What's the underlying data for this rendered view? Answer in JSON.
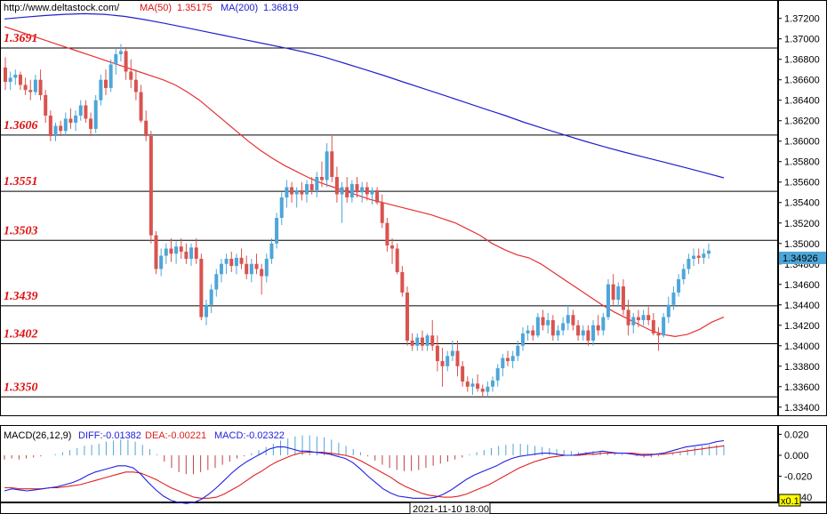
{
  "colors": {
    "up": "#4da6d8",
    "down": "#d9534f",
    "ma50": "#e83030",
    "ma200": "#2020d0",
    "level_text": "#e01010",
    "diff": "#2020e0",
    "dea": "#e02020",
    "macd_pos": "#4da6d8",
    "macd_neg": "#c04040"
  },
  "header": {
    "url": "http://www.deltastock.com/",
    "ma50_label": "MA(50)",
    "ma50_value": "1.35175",
    "ma200_label": "MA(200)",
    "ma200_value": "1.36819"
  },
  "macd_header": {
    "title": "MACD(26,12,9)",
    "diff": "DIFF:-0.01382",
    "dea": "DEA:-0.00221",
    "macd": "MACD:-0.02322"
  },
  "footer": {
    "timestamp": "2021-11-10 18:00",
    "zoom": "x0.1"
  },
  "chart_data": {
    "type": "candlestick",
    "ylim": [
      1.3332,
      1.3738
    ],
    "y_ticks": [
      "1.37200",
      "1.37000",
      "1.36800",
      "1.36600",
      "1.36400",
      "1.36200",
      "1.36000",
      "1.35800",
      "1.35600",
      "1.35400",
      "1.35200",
      "1.35000",
      "1.34800",
      "1.34600",
      "1.34400",
      "1.34200",
      "1.34000",
      "1.33800",
      "1.33600",
      "1.33400"
    ],
    "last_price": "1.34926",
    "levels": [
      "1.3691",
      "1.3606",
      "1.3551",
      "1.3503",
      "1.3439",
      "1.3402",
      "1.3350"
    ],
    "ohlc": [
      [
        1.3672,
        1.3682,
        1.365,
        1.3658
      ],
      [
        1.3658,
        1.3668,
        1.365,
        1.3662
      ],
      [
        1.3662,
        1.367,
        1.3655,
        1.3665
      ],
      [
        1.3665,
        1.3668,
        1.365,
        1.3655
      ],
      [
        1.3655,
        1.3662,
        1.3645,
        1.365
      ],
      [
        1.365,
        1.366,
        1.364,
        1.3648
      ],
      [
        1.3648,
        1.3665,
        1.3645,
        1.366
      ],
      [
        1.366,
        1.367,
        1.364,
        1.3645
      ],
      [
        1.3645,
        1.365,
        1.3618,
        1.3625
      ],
      [
        1.3625,
        1.363,
        1.36,
        1.3605
      ],
      [
        1.3605,
        1.3618,
        1.36,
        1.3615
      ],
      [
        1.3615,
        1.362,
        1.3605,
        1.361
      ],
      [
        1.361,
        1.3628,
        1.3605,
        1.3622
      ],
      [
        1.3622,
        1.3632,
        1.3612,
        1.3618
      ],
      [
        1.3618,
        1.363,
        1.361,
        1.3625
      ],
      [
        1.3625,
        1.364,
        1.362,
        1.3635
      ],
      [
        1.3635,
        1.364,
        1.3618,
        1.3622
      ],
      [
        1.3622,
        1.3628,
        1.3605,
        1.3612
      ],
      [
        1.3612,
        1.3645,
        1.3608,
        1.364
      ],
      [
        1.364,
        1.3665,
        1.3635,
        1.366
      ],
      [
        1.366,
        1.367,
        1.3645,
        1.3652
      ],
      [
        1.3652,
        1.368,
        1.3648,
        1.3675
      ],
      [
        1.3675,
        1.369,
        1.3665,
        1.3685
      ],
      [
        1.3685,
        1.3695,
        1.3678,
        1.3688
      ],
      [
        1.3688,
        1.3692,
        1.366,
        1.3668
      ],
      [
        1.3668,
        1.368,
        1.3652,
        1.366
      ],
      [
        1.366,
        1.367,
        1.364,
        1.3648
      ],
      [
        1.3648,
        1.3655,
        1.3618,
        1.362
      ],
      [
        1.362,
        1.363,
        1.36,
        1.3605
      ],
      [
        1.3605,
        1.361,
        1.35,
        1.3508
      ],
      [
        1.3508,
        1.3512,
        1.347,
        1.3475
      ],
      [
        1.3475,
        1.3495,
        1.3468,
        1.3488
      ],
      [
        1.3488,
        1.35,
        1.348,
        1.3495
      ],
      [
        1.3495,
        1.3505,
        1.3482,
        1.349
      ],
      [
        1.349,
        1.3502,
        1.348,
        1.3497
      ],
      [
        1.3497,
        1.3505,
        1.3485,
        1.3492
      ],
      [
        1.3492,
        1.35,
        1.348,
        1.3485
      ],
      [
        1.3485,
        1.35,
        1.3478,
        1.3496
      ],
      [
        1.3496,
        1.3505,
        1.348,
        1.3485
      ],
      [
        1.3485,
        1.349,
        1.3425,
        1.3428
      ],
      [
        1.3428,
        1.3445,
        1.342,
        1.344
      ],
      [
        1.344,
        1.346,
        1.3432,
        1.3455
      ],
      [
        1.3455,
        1.3475,
        1.3448,
        1.347
      ],
      [
        1.347,
        1.3485,
        1.3462,
        1.348
      ],
      [
        1.348,
        1.349,
        1.347,
        1.3485
      ],
      [
        1.3485,
        1.3492,
        1.3472,
        1.3478
      ],
      [
        1.3478,
        1.349,
        1.347,
        1.3486
      ],
      [
        1.3486,
        1.3495,
        1.3475,
        1.348
      ],
      [
        1.348,
        1.3488,
        1.3465,
        1.347
      ],
      [
        1.347,
        1.3485,
        1.3462,
        1.348
      ],
      [
        1.348,
        1.349,
        1.347,
        1.3475
      ],
      [
        1.3475,
        1.348,
        1.345,
        1.3468
      ],
      [
        1.3468,
        1.349,
        1.3462,
        1.3485
      ],
      [
        1.3485,
        1.3505,
        1.348,
        1.35
      ],
      [
        1.35,
        1.353,
        1.3495,
        1.3525
      ],
      [
        1.3525,
        1.355,
        1.3518,
        1.3545
      ],
      [
        1.3545,
        1.3562,
        1.3535,
        1.3555
      ],
      [
        1.3555,
        1.356,
        1.354,
        1.3548
      ],
      [
        1.3548,
        1.3555,
        1.3535,
        1.3552
      ],
      [
        1.3552,
        1.356,
        1.3542,
        1.3548
      ],
      [
        1.3548,
        1.3562,
        1.354,
        1.3558
      ],
      [
        1.3558,
        1.3565,
        1.3548,
        1.3552
      ],
      [
        1.3552,
        1.357,
        1.3545,
        1.3565
      ],
      [
        1.3565,
        1.358,
        1.3555,
        1.3562
      ],
      [
        1.3562,
        1.3598,
        1.3555,
        1.359
      ],
      [
        1.359,
        1.3605,
        1.356,
        1.3565
      ],
      [
        1.3565,
        1.3575,
        1.354,
        1.3548
      ],
      [
        1.3548,
        1.356,
        1.352,
        1.3555
      ],
      [
        1.3555,
        1.3565,
        1.354,
        1.3545
      ],
      [
        1.3545,
        1.3562,
        1.354,
        1.3558
      ],
      [
        1.3558,
        1.3565,
        1.3545,
        1.355
      ],
      [
        1.355,
        1.356,
        1.354,
        1.3555
      ],
      [
        1.3555,
        1.356,
        1.3542,
        1.3548
      ],
      [
        1.3548,
        1.3555,
        1.3538,
        1.3552
      ],
      [
        1.3552,
        1.3555,
        1.3538,
        1.354
      ],
      [
        1.354,
        1.3548,
        1.3515,
        1.352
      ],
      [
        1.352,
        1.3525,
        1.3492,
        1.3498
      ],
      [
        1.3498,
        1.3505,
        1.348,
        1.3495
      ],
      [
        1.3495,
        1.35,
        1.347,
        1.3472
      ],
      [
        1.3472,
        1.3478,
        1.3448,
        1.3452
      ],
      [
        1.3452,
        1.3458,
        1.34,
        1.3405
      ],
      [
        1.3405,
        1.3412,
        1.3395,
        1.34
      ],
      [
        1.34,
        1.3412,
        1.3395,
        1.3408
      ],
      [
        1.3408,
        1.3415,
        1.3395,
        1.34
      ],
      [
        1.34,
        1.3412,
        1.3395,
        1.341
      ],
      [
        1.341,
        1.3425,
        1.3395,
        1.34
      ],
      [
        1.34,
        1.341,
        1.3375,
        1.3385
      ],
      [
        1.3385,
        1.3398,
        1.336,
        1.338
      ],
      [
        1.338,
        1.3395,
        1.3375,
        1.339
      ],
      [
        1.339,
        1.3405,
        1.3385,
        1.3395
      ],
      [
        1.3395,
        1.3405,
        1.337,
        1.338
      ],
      [
        1.338,
        1.3385,
        1.336,
        1.3365
      ],
      [
        1.3365,
        1.337,
        1.3355,
        1.336
      ],
      [
        1.336,
        1.3368,
        1.3352,
        1.3363
      ],
      [
        1.3363,
        1.3372,
        1.3355,
        1.3358
      ],
      [
        1.3358,
        1.3362,
        1.335,
        1.3355
      ],
      [
        1.3355,
        1.3365,
        1.335,
        1.336
      ],
      [
        1.336,
        1.337,
        1.3355,
        1.3366
      ],
      [
        1.3366,
        1.3382,
        1.336,
        1.3378
      ],
      [
        1.3378,
        1.3392,
        1.337,
        1.3388
      ],
      [
        1.3388,
        1.3395,
        1.338,
        1.3385
      ],
      [
        1.3385,
        1.3395,
        1.3378,
        1.339
      ],
      [
        1.339,
        1.3405,
        1.3385,
        1.34
      ],
      [
        1.34,
        1.3418,
        1.3395,
        1.3412
      ],
      [
        1.3412,
        1.342,
        1.3405,
        1.3415
      ],
      [
        1.3415,
        1.342,
        1.3405,
        1.341
      ],
      [
        1.341,
        1.3432,
        1.3408,
        1.3428
      ],
      [
        1.3428,
        1.3435,
        1.3415,
        1.342
      ],
      [
        1.342,
        1.3432,
        1.3412,
        1.3425
      ],
      [
        1.3425,
        1.343,
        1.3405,
        1.341
      ],
      [
        1.341,
        1.342,
        1.3405,
        1.3415
      ],
      [
        1.3415,
        1.3428,
        1.341,
        1.3422
      ],
      [
        1.3422,
        1.344,
        1.3415,
        1.343
      ],
      [
        1.343,
        1.3435,
        1.3415,
        1.342
      ],
      [
        1.342,
        1.3425,
        1.3405,
        1.341
      ],
      [
        1.341,
        1.342,
        1.3405,
        1.3415
      ],
      [
        1.3415,
        1.342,
        1.34,
        1.3405
      ],
      [
        1.3405,
        1.3425,
        1.34,
        1.342
      ],
      [
        1.342,
        1.343,
        1.341,
        1.3415
      ],
      [
        1.3415,
        1.3432,
        1.341,
        1.3428
      ],
      [
        1.3428,
        1.3465,
        1.3425,
        1.346
      ],
      [
        1.346,
        1.347,
        1.344,
        1.3445
      ],
      [
        1.3445,
        1.3462,
        1.3438,
        1.3458
      ],
      [
        1.3458,
        1.3465,
        1.343,
        1.3435
      ],
      [
        1.3435,
        1.3445,
        1.341,
        1.342
      ],
      [
        1.342,
        1.3432,
        1.3412,
        1.3428
      ],
      [
        1.3428,
        1.3435,
        1.3418,
        1.3425
      ],
      [
        1.3425,
        1.3435,
        1.342,
        1.343
      ],
      [
        1.343,
        1.3438,
        1.342,
        1.3425
      ],
      [
        1.3425,
        1.3432,
        1.341,
        1.3412
      ],
      [
        1.3412,
        1.3418,
        1.3395,
        1.341
      ],
      [
        1.341,
        1.3432,
        1.3408,
        1.3428
      ],
      [
        1.3428,
        1.3448,
        1.3422,
        1.344
      ],
      [
        1.344,
        1.3458,
        1.3435,
        1.3452
      ],
      [
        1.3452,
        1.347,
        1.3448,
        1.3465
      ],
      [
        1.3465,
        1.348,
        1.346,
        1.3475
      ],
      [
        1.3475,
        1.349,
        1.347,
        1.3485
      ],
      [
        1.3485,
        1.3495,
        1.3478,
        1.3488
      ],
      [
        1.3488,
        1.3495,
        1.348,
        1.3486
      ],
      [
        1.3486,
        1.3495,
        1.348,
        1.349
      ],
      [
        1.349,
        1.35,
        1.3485,
        1.3493
      ]
    ],
    "ma50": [
      1.3712,
      1.3708,
      1.3704,
      1.37,
      1.3696,
      1.3692,
      1.3688,
      1.3684,
      1.368,
      1.3676,
      1.3672,
      1.3668,
      1.3664,
      1.366,
      1.3655,
      1.3648,
      1.364,
      1.363,
      1.362,
      1.361,
      1.36,
      1.3591,
      1.3583,
      1.3576,
      1.357,
      1.3564,
      1.3559,
      1.3555,
      1.3551,
      1.3547,
      1.3543,
      1.354,
      1.3537,
      1.3534,
      1.3531,
      1.3528,
      1.3524,
      1.352,
      1.3514,
      1.3508,
      1.35,
      1.3494,
      1.3489,
      1.3486,
      1.348,
      1.3472,
      1.3464,
      1.3456,
      1.3448,
      1.344,
      1.3433,
      1.3427,
      1.3421,
      1.3415,
      1.3411,
      1.3409,
      1.3411,
      1.3416,
      1.3423,
      1.3428
    ],
    "ma200": [
      1.37195,
      1.37212,
      1.37228,
      1.3724,
      1.37246,
      1.3724,
      1.3722,
      1.37189,
      1.37152,
      1.37113,
      1.37073,
      1.37033,
      1.36992,
      1.36953,
      1.36913,
      1.36871,
      1.36822,
      1.36763,
      1.36703,
      1.36641,
      1.36576,
      1.36512,
      1.36448,
      1.36383,
      1.36318,
      1.36254,
      1.36185,
      1.36122,
      1.36062,
      1.36002,
      1.35946,
      1.35893,
      1.35844,
      1.35795,
      1.35745,
      1.35694,
      1.35641
    ],
    "macd": {
      "ylim": [
        -0.045,
        0.028
      ],
      "y_ticks": [
        "0.020",
        "0.000",
        "-0.020",
        "-0.040"
      ],
      "hist": [
        -0.004,
        -0.003,
        -0.004,
        -0.003,
        -0.002,
        -0.001,
        0.0,
        0.001,
        0.003,
        0.005,
        0.007,
        0.009,
        0.01,
        0.011,
        0.013,
        0.014,
        0.015,
        0.015,
        0.013,
        0.01,
        0.006,
        0.001,
        -0.006,
        -0.012,
        -0.016,
        -0.018,
        -0.018,
        -0.016,
        -0.014,
        -0.012,
        -0.009,
        -0.006,
        -0.003,
        -0.001,
        0.002,
        0.005,
        0.008,
        0.011,
        0.014,
        0.016,
        0.018,
        0.019,
        0.019,
        0.018,
        0.017,
        0.015,
        0.012,
        0.009,
        0.006,
        0.003,
        -0.001,
        -0.005,
        -0.009,
        -0.012,
        -0.014,
        -0.015,
        -0.015,
        -0.014,
        -0.012,
        -0.01,
        -0.008,
        -0.006,
        -0.004,
        -0.002,
        0.001,
        0.003,
        0.005,
        0.007,
        0.009,
        0.01,
        0.011,
        0.011,
        0.01,
        0.009,
        0.008,
        0.007,
        0.006,
        0.005,
        0.004,
        0.003,
        0.003,
        0.004,
        0.004,
        0.003,
        0.002,
        0.001,
        0.0,
        -0.001,
        -0.002,
        -0.002,
        -0.001,
        0.0,
        0.002,
        0.004,
        0.006,
        0.008,
        0.009,
        0.01,
        0.01,
        0.01
      ],
      "diff": [
        -0.034,
        -0.032,
        -0.033,
        -0.034,
        -0.033,
        -0.032,
        -0.031,
        -0.03,
        -0.028,
        -0.026,
        -0.023,
        -0.019,
        -0.016,
        -0.014,
        -0.012,
        -0.01,
        -0.01,
        -0.012,
        -0.018,
        -0.026,
        -0.033,
        -0.039,
        -0.043,
        -0.045,
        -0.046,
        -0.045,
        -0.042,
        -0.037,
        -0.031,
        -0.024,
        -0.017,
        -0.011,
        -0.006,
        -0.002,
        0.002,
        0.006,
        0.008,
        0.008,
        0.006,
        0.004,
        0.004,
        0.003,
        0.002,
        0.001,
        -0.001,
        -0.003,
        -0.007,
        -0.013,
        -0.02,
        -0.026,
        -0.032,
        -0.036,
        -0.039,
        -0.04,
        -0.041,
        -0.041,
        -0.041,
        -0.04,
        -0.037,
        -0.033,
        -0.028,
        -0.023,
        -0.019,
        -0.016,
        -0.013,
        -0.01,
        -0.006,
        -0.003,
        -0.001,
        0.0,
        0.001,
        0.002,
        0.002,
        0.001,
        0.0,
        0.0,
        0.001,
        0.002,
        0.003,
        0.004,
        0.003,
        0.002,
        0.002,
        0.001,
        0.0,
        0.0,
        0.001,
        0.002,
        0.004,
        0.006,
        0.008,
        0.009,
        0.01,
        0.011,
        0.013,
        0.014
      ],
      "dea": [
        -0.031,
        -0.031,
        -0.032,
        -0.032,
        -0.032,
        -0.032,
        -0.031,
        -0.031,
        -0.03,
        -0.029,
        -0.028,
        -0.026,
        -0.024,
        -0.022,
        -0.02,
        -0.018,
        -0.016,
        -0.016,
        -0.017,
        -0.02,
        -0.023,
        -0.027,
        -0.031,
        -0.034,
        -0.037,
        -0.04,
        -0.041,
        -0.041,
        -0.04,
        -0.037,
        -0.033,
        -0.029,
        -0.024,
        -0.019,
        -0.015,
        -0.01,
        -0.006,
        -0.003,
        0.0,
        0.002,
        0.003,
        0.003,
        0.003,
        0.002,
        0.001,
        0.0,
        -0.002,
        -0.005,
        -0.009,
        -0.013,
        -0.017,
        -0.021,
        -0.026,
        -0.03,
        -0.033,
        -0.036,
        -0.038,
        -0.039,
        -0.04,
        -0.04,
        -0.039,
        -0.037,
        -0.034,
        -0.031,
        -0.028,
        -0.024,
        -0.02,
        -0.016,
        -0.012,
        -0.009,
        -0.006,
        -0.004,
        -0.002,
        -0.001,
        0.0,
        0.0,
        0.0,
        0.001,
        0.001,
        0.002,
        0.002,
        0.002,
        0.002,
        0.002,
        0.001,
        0.001,
        0.001,
        0.001,
        0.002,
        0.003,
        0.004,
        0.005,
        0.006,
        0.007,
        0.008,
        0.009
      ]
    }
  }
}
